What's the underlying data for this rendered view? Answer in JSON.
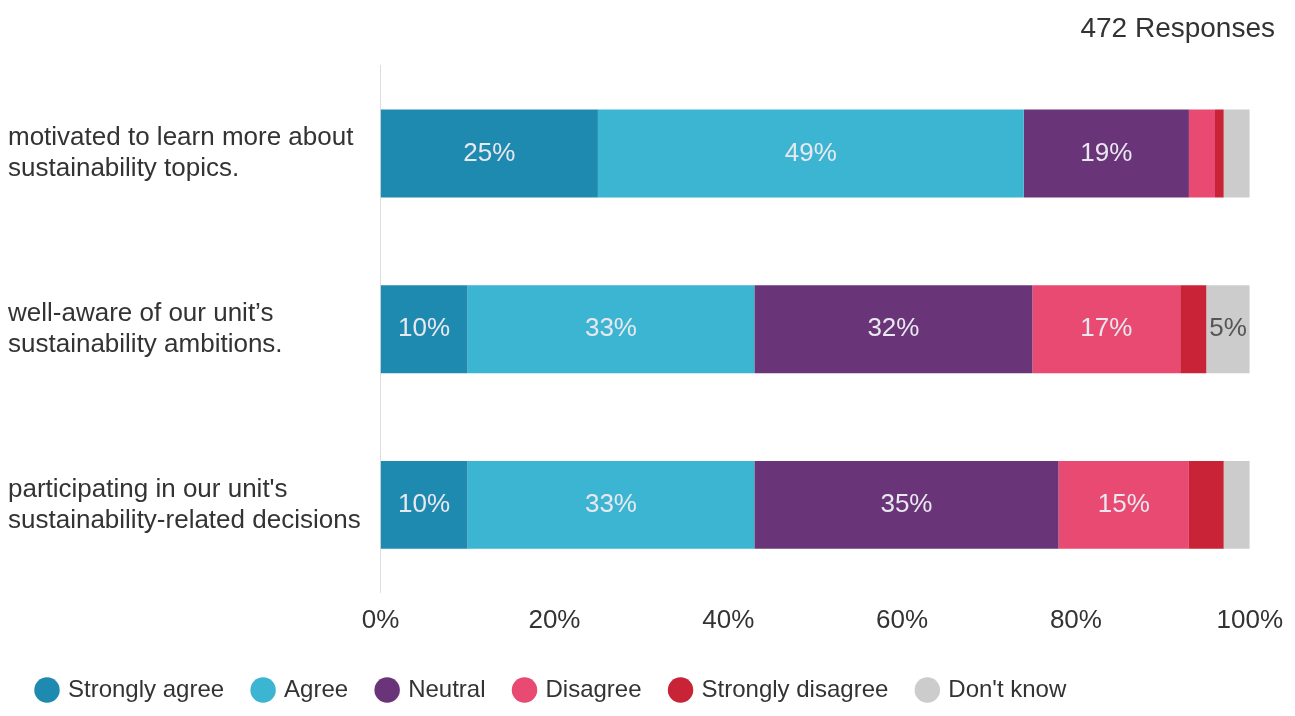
{
  "chart_data": {
    "type": "bar",
    "orientation": "horizontal",
    "stacked": true,
    "title": "472 Responses",
    "categories": [
      "motivated to learn more about sustainability topics.",
      "well-aware of our unit’s sustainability ambitions.",
      "participating in our unit's sustainability-related decisions"
    ],
    "series": [
      {
        "name": "Strongly agree",
        "color": "#1f8ab0",
        "values": [
          25,
          10,
          10
        ],
        "value_labels": [
          "25%",
          "10%",
          "10%"
        ]
      },
      {
        "name": "Agree",
        "color": "#3bb5d1",
        "values": [
          49,
          33,
          33
        ],
        "value_labels": [
          "49%",
          "33%",
          "33%"
        ]
      },
      {
        "name": "Neutral",
        "color": "#6a3578",
        "values": [
          19,
          32,
          35
        ],
        "value_labels": [
          "19%",
          "32%",
          "35%"
        ]
      },
      {
        "name": "Disagree",
        "color": "#e84a72",
        "values": [
          3,
          17,
          15
        ],
        "value_labels": [
          null,
          "17%",
          "15%"
        ]
      },
      {
        "name": "Strongly disagree",
        "color": "#c92338",
        "values": [
          1,
          3,
          4
        ],
        "value_labels": [
          null,
          null,
          null
        ]
      },
      {
        "name": "Don't know",
        "color": "#cccccc",
        "values": [
          3,
          5,
          3
        ],
        "value_labels": [
          null,
          "5%",
          null
        ]
      }
    ],
    "xlim": [
      0,
      100
    ],
    "xticks": [
      {
        "value": 0,
        "label": "0%"
      },
      {
        "value": 20,
        "label": "20%"
      },
      {
        "value": 40,
        "label": "40%"
      },
      {
        "value": 60,
        "label": "60%"
      },
      {
        "value": 80,
        "label": "80%"
      },
      {
        "value": 100,
        "label": "100%"
      }
    ],
    "grid": false,
    "legend": "bottom"
  }
}
